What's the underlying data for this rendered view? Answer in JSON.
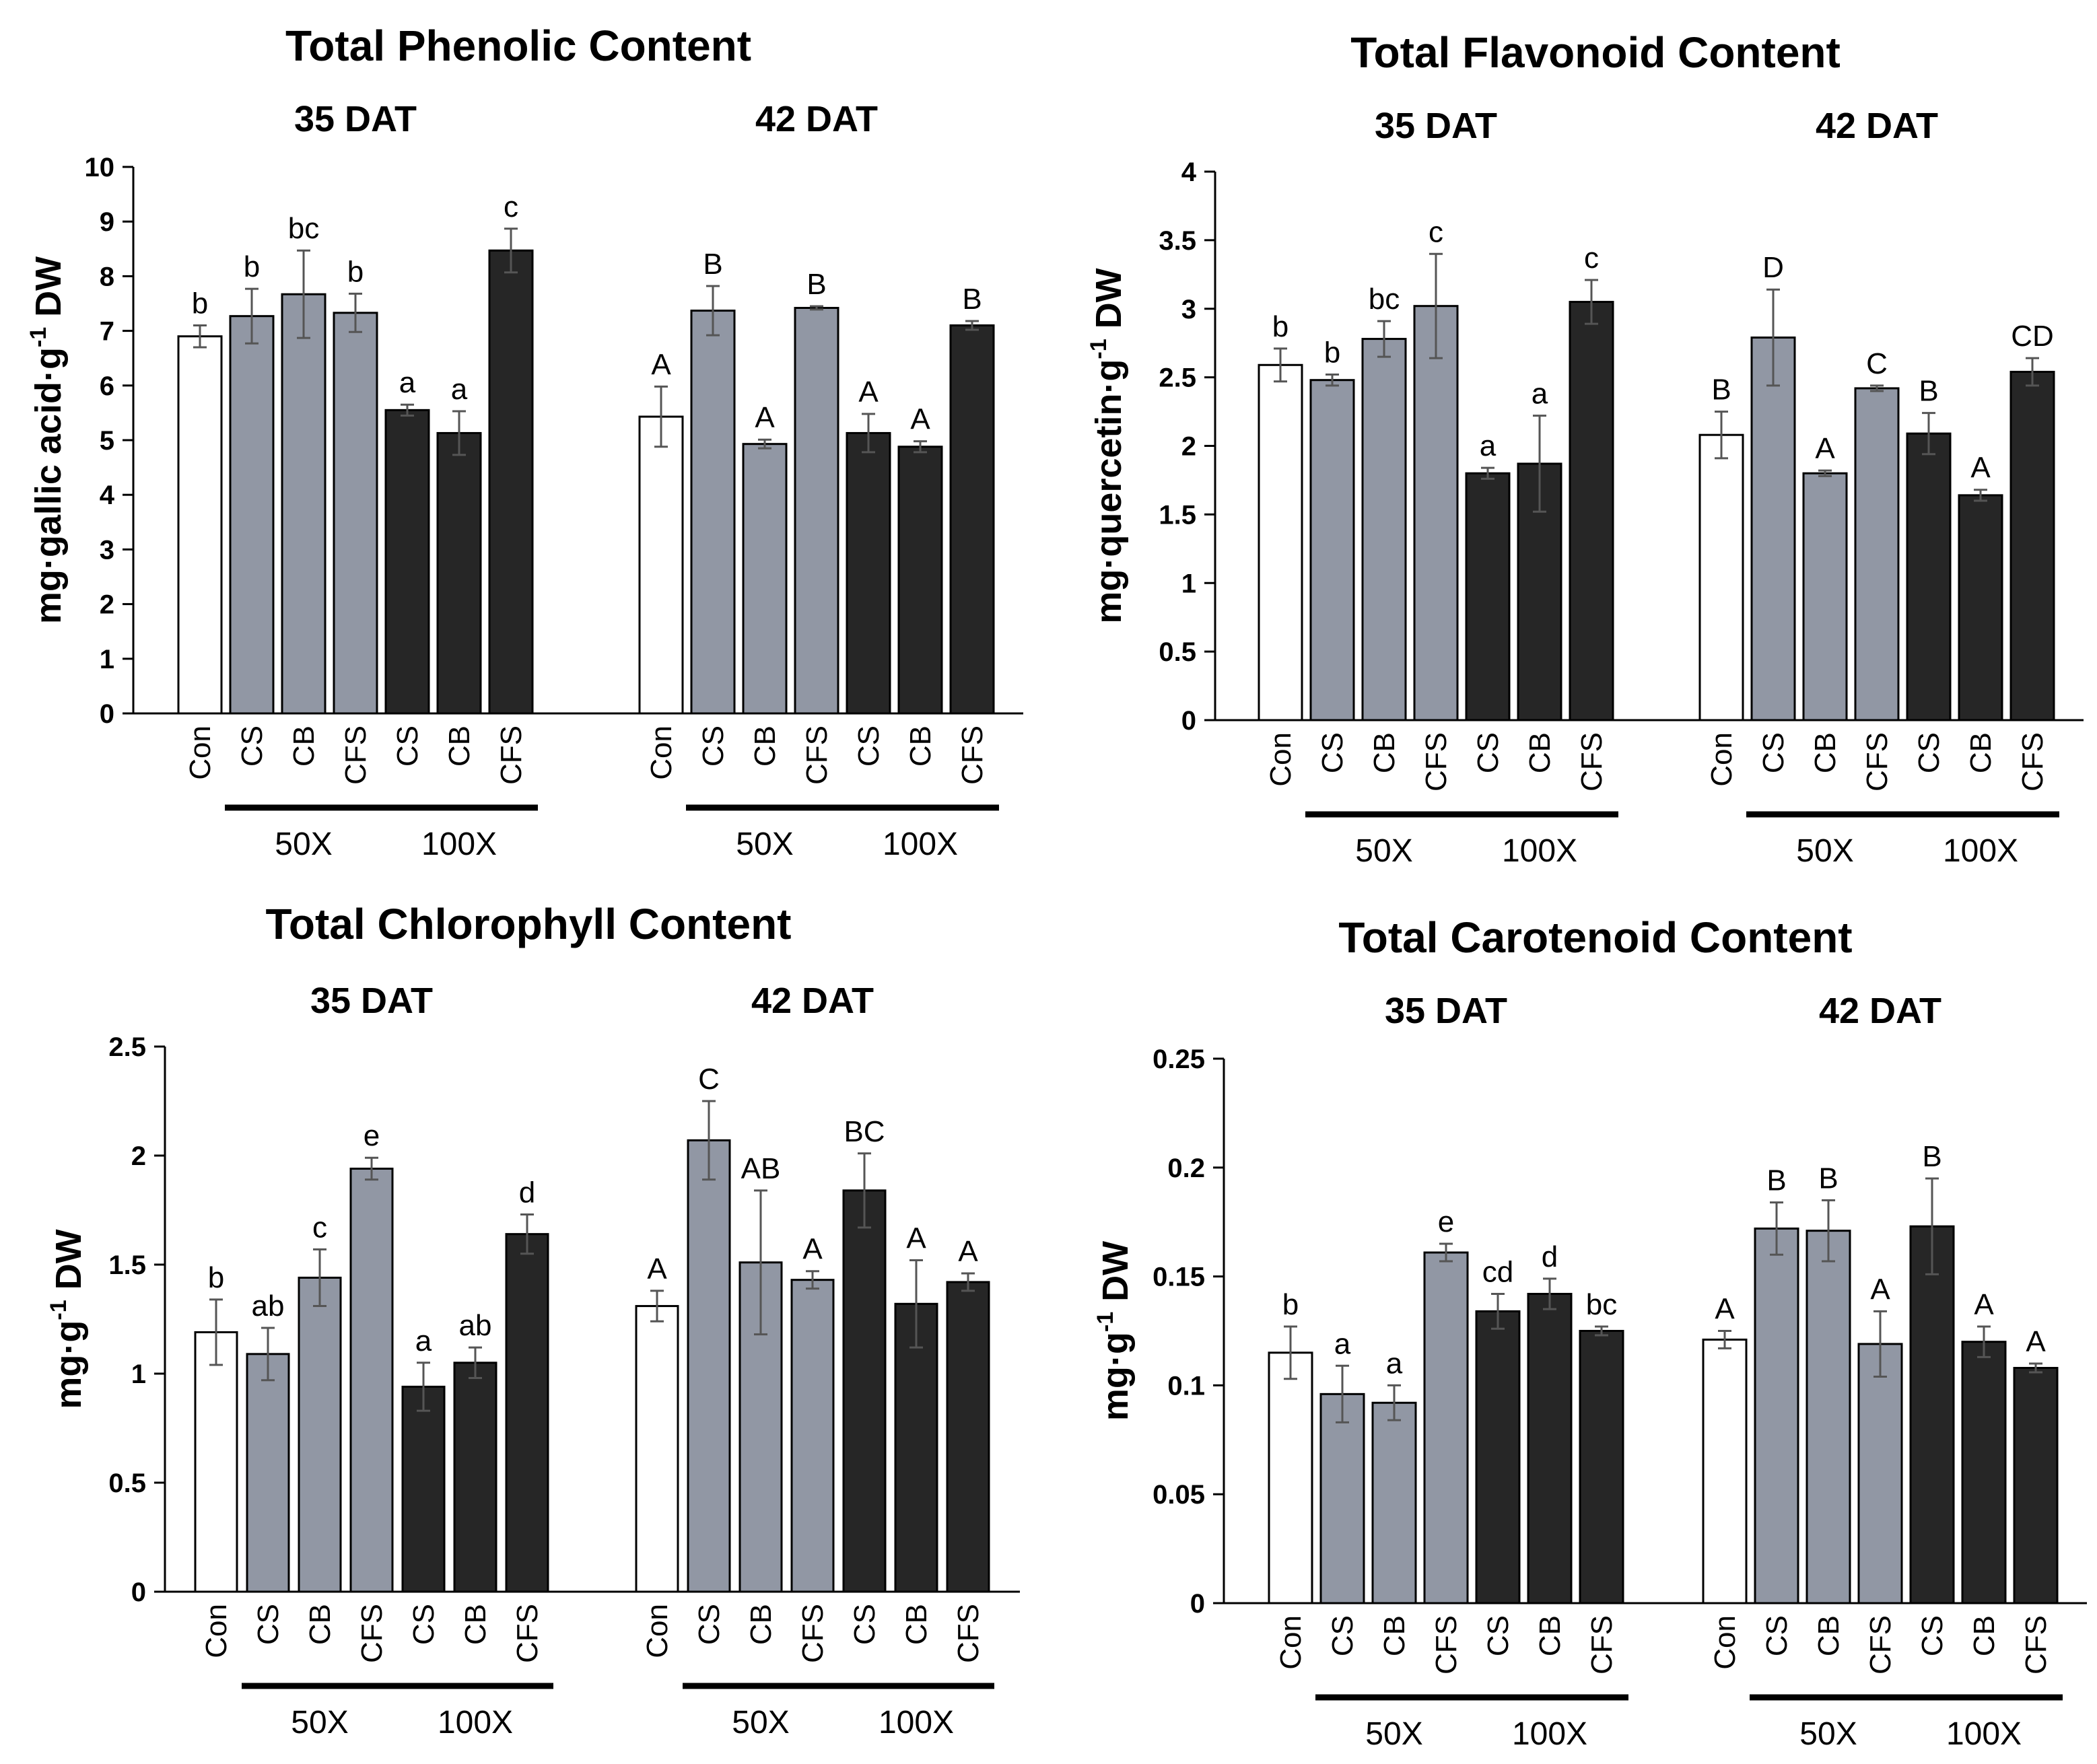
{
  "colors": {
    "con": "#ffffff",
    "x50": "#9197a4",
    "x100": "#262626",
    "edge": "#000000",
    "err": "#555555"
  },
  "chart_data": [
    {
      "type": "bar",
      "title": "Total Phenolic Content",
      "ylabel_main": "mg·gallic acid·g",
      "ylabel_sup": "-1",
      "ylabel_tail": " DW",
      "ylim": [
        0,
        10
      ],
      "yticks": [
        "0",
        "1",
        "2",
        "3",
        "4",
        "5",
        "6",
        "7",
        "8",
        "9",
        "10"
      ],
      "groups": [
        {
          "name": "35 DAT",
          "categories": [
            "Con",
            "CS",
            "CB",
            "CFS",
            "CS",
            "CB",
            "CFS"
          ],
          "treatment": [
            "Con",
            "50X",
            "50X",
            "50X",
            "100X",
            "100X",
            "100X"
          ],
          "values": [
            6.9,
            7.27,
            7.67,
            7.33,
            5.55,
            5.13,
            8.47
          ],
          "errors": [
            0.2,
            0.5,
            0.8,
            0.35,
            0.1,
            0.4,
            0.4
          ],
          "letters": [
            "b",
            "b",
            "bc",
            "b",
            "a",
            "a",
            "c"
          ]
        },
        {
          "name": "42 DAT",
          "categories": [
            "Con",
            "CS",
            "CB",
            "CFS",
            "CS",
            "CB",
            "CFS"
          ],
          "treatment": [
            "Con",
            "50X",
            "50X",
            "50X",
            "100X",
            "100X",
            "100X"
          ],
          "values": [
            5.43,
            7.37,
            4.93,
            7.42,
            5.13,
            4.88,
            7.1
          ],
          "errors": [
            0.55,
            0.45,
            0.08,
            0.03,
            0.35,
            0.1,
            0.08
          ],
          "letters": [
            "A",
            "B",
            "A",
            "B",
            "A",
            "A",
            "B"
          ]
        }
      ],
      "group_labels": [
        "50X",
        "100X"
      ]
    },
    {
      "type": "bar",
      "title": "Total Flavonoid Content",
      "ylabel_main": "mg·quercetin·g",
      "ylabel_sup": "-1",
      "ylabel_tail": " DW",
      "ylim": [
        0,
        4
      ],
      "yticks": [
        "0",
        "0.5",
        "1",
        "1.5",
        "2",
        "2.5",
        "3",
        "3.5",
        "4"
      ],
      "groups": [
        {
          "name": "35 DAT",
          "categories": [
            "Con",
            "CS",
            "CB",
            "CFS",
            "CS",
            "CB",
            "CFS"
          ],
          "treatment": [
            "Con",
            "50X",
            "50X",
            "50X",
            "100X",
            "100X",
            "100X"
          ],
          "values": [
            2.59,
            2.48,
            2.78,
            3.02,
            1.8,
            1.87,
            3.05
          ],
          "errors": [
            0.12,
            0.04,
            0.13,
            0.38,
            0.04,
            0.35,
            0.16
          ],
          "letters": [
            "b",
            "b",
            "bc",
            "c",
            "a",
            "a",
            "c"
          ]
        },
        {
          "name": "42 DAT",
          "categories": [
            "Con",
            "CS",
            "CB",
            "CFS",
            "CS",
            "CB",
            "CFS"
          ],
          "treatment": [
            "Con",
            "50X",
            "50X",
            "50X",
            "100X",
            "100X",
            "100X"
          ],
          "values": [
            2.08,
            2.79,
            1.8,
            2.42,
            2.09,
            1.64,
            2.54
          ],
          "errors": [
            0.17,
            0.35,
            0.02,
            0.02,
            0.15,
            0.04,
            0.1
          ],
          "letters": [
            "B",
            "D",
            "A",
            "C",
            "B",
            "A",
            "CD"
          ]
        }
      ],
      "group_labels": [
        "50X",
        "100X"
      ]
    },
    {
      "type": "bar",
      "title": "Total Chlorophyll Content",
      "ylabel_main": "mg·g",
      "ylabel_sup": "-1",
      "ylabel_tail": " DW",
      "ylim": [
        0,
        2.5
      ],
      "yticks": [
        "0",
        "0.5",
        "1",
        "1.5",
        "2",
        "2.5"
      ],
      "groups": [
        {
          "name": "35 DAT",
          "categories": [
            "Con",
            "CS",
            "CB",
            "CFS",
            "CS",
            "CB",
            "CFS"
          ],
          "treatment": [
            "Con",
            "50X",
            "50X",
            "50X",
            "100X",
            "100X",
            "100X"
          ],
          "values": [
            1.19,
            1.09,
            1.44,
            1.94,
            0.94,
            1.05,
            1.64
          ],
          "errors": [
            0.15,
            0.12,
            0.13,
            0.05,
            0.11,
            0.07,
            0.09
          ],
          "letters": [
            "b",
            "ab",
            "c",
            "e",
            "a",
            "ab",
            "d"
          ]
        },
        {
          "name": "42 DAT",
          "categories": [
            "Con",
            "CS",
            "CB",
            "CFS",
            "CS",
            "CB",
            "CFS"
          ],
          "treatment": [
            "Con",
            "50X",
            "50X",
            "50X",
            "100X",
            "100X",
            "100X"
          ],
          "values": [
            1.31,
            2.07,
            1.51,
            1.43,
            1.84,
            1.32,
            1.42
          ],
          "errors": [
            0.07,
            0.18,
            0.33,
            0.04,
            0.17,
            0.2,
            0.04
          ],
          "letters": [
            "A",
            "C",
            "AB",
            "A",
            "BC",
            "A",
            "A"
          ]
        }
      ],
      "group_labels": [
        "50X",
        "100X"
      ]
    },
    {
      "type": "bar",
      "title": "Total Carotenoid Content",
      "ylabel_main": "mg·g",
      "ylabel_sup": "-1",
      "ylabel_tail": " DW",
      "ylim": [
        0,
        0.25
      ],
      "yticks": [
        "0",
        "0.05",
        "0.1",
        "0.15",
        "0.2",
        "0.25"
      ],
      "groups": [
        {
          "name": "35 DAT",
          "categories": [
            "Con",
            "CS",
            "CB",
            "CFS",
            "CS",
            "CB",
            "CFS"
          ],
          "treatment": [
            "Con",
            "50X",
            "50X",
            "50X",
            "100X",
            "100X",
            "100X"
          ],
          "values": [
            0.115,
            0.096,
            0.092,
            0.161,
            0.134,
            0.142,
            0.125
          ],
          "errors": [
            0.012,
            0.013,
            0.008,
            0.004,
            0.008,
            0.007,
            0.002
          ],
          "letters": [
            "b",
            "a",
            "a",
            "e",
            "cd",
            "d",
            "bc"
          ]
        },
        {
          "name": "42 DAT",
          "categories": [
            "Con",
            "CS",
            "CB",
            "CFS",
            "CS",
            "CB",
            "CFS"
          ],
          "treatment": [
            "Con",
            "50X",
            "50X",
            "50X",
            "100X",
            "100X",
            "100X"
          ],
          "values": [
            0.121,
            0.172,
            0.171,
            0.119,
            0.173,
            0.12,
            0.108
          ],
          "errors": [
            0.004,
            0.012,
            0.014,
            0.015,
            0.022,
            0.007,
            0.002
          ],
          "letters": [
            "A",
            "B",
            "B",
            "A",
            "B",
            "A",
            "A"
          ]
        }
      ],
      "group_labels": [
        "50X",
        "100X"
      ]
    }
  ]
}
